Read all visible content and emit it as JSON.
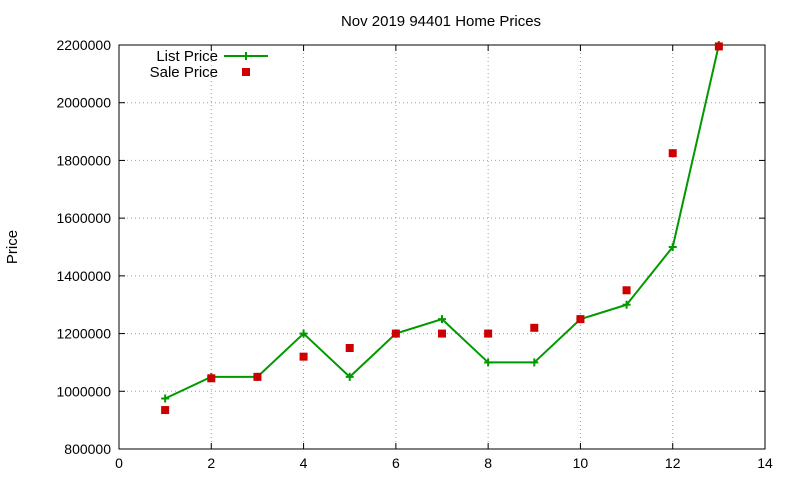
{
  "chart_data": {
    "type": "line",
    "title": "Nov 2019 94401 Home Prices",
    "xlabel": "",
    "ylabel": "Price",
    "xlim": [
      0,
      14
    ],
    "ylim": [
      800000,
      2200000
    ],
    "xticks": [
      0,
      2,
      4,
      6,
      8,
      10,
      12,
      14
    ],
    "yticks": [
      800000,
      1000000,
      1200000,
      1400000,
      1600000,
      1800000,
      2000000,
      2200000
    ],
    "grid": true,
    "legend_position": "top-left",
    "series": [
      {
        "name": "List Price",
        "kind": "line-with-plus-markers",
        "color": "#009900",
        "x": [
          1,
          2,
          3,
          4,
          5,
          6,
          7,
          8,
          9,
          10,
          11,
          12,
          13
        ],
        "y": [
          975000,
          1050000,
          1050000,
          1200000,
          1050000,
          1200000,
          1250000,
          1100000,
          1100000,
          1250000,
          1300000,
          1500000,
          2200000
        ]
      },
      {
        "name": "Sale Price",
        "kind": "square-markers",
        "color": "#cc0000",
        "x": [
          1,
          2,
          3,
          4,
          5,
          6,
          7,
          8,
          9,
          10,
          11,
          12,
          13
        ],
        "y": [
          935000,
          1045000,
          1050000,
          1120000,
          1150000,
          1200000,
          1200000,
          1200000,
          1220000,
          1250000,
          1350000,
          1825000,
          2195000
        ]
      }
    ]
  }
}
